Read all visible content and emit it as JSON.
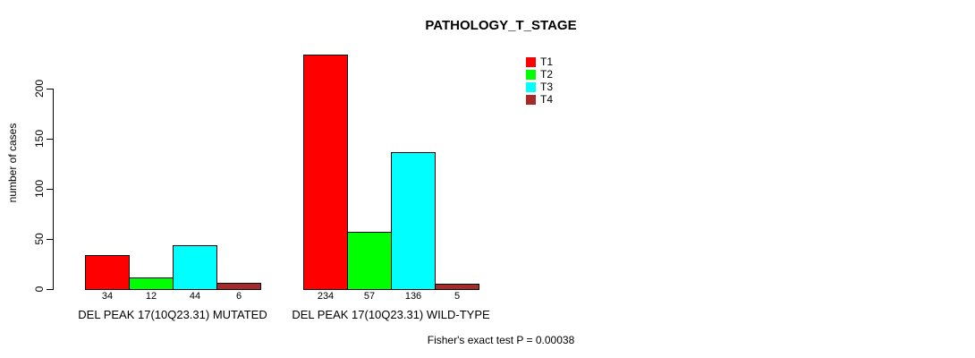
{
  "chart_data": {
    "type": "bar",
    "title": "PATHOLOGY_T_STAGE",
    "ylabel": "number of cases",
    "xlabel": "",
    "y_ticks": [
      0,
      50,
      100,
      150,
      200
    ],
    "ylim": [
      0,
      240
    ],
    "grid": false,
    "legend_position": "top-right",
    "categories": [
      "DEL PEAK 17(10Q23.31) MUTATED",
      "DEL PEAK 17(10Q23.31) WILD-TYPE"
    ],
    "series": [
      {
        "name": "T1",
        "color": "#FF0000",
        "values": [
          34,
          234
        ]
      },
      {
        "name": "T2",
        "color": "#00FF00",
        "values": [
          12,
          57
        ]
      },
      {
        "name": "T3",
        "color": "#00FFFF",
        "values": [
          44,
          136
        ]
      },
      {
        "name": "T4",
        "color": "#A52A2A",
        "values": [
          6,
          5
        ]
      }
    ],
    "annotation": "Fisher's exact test P = 0.00038"
  }
}
